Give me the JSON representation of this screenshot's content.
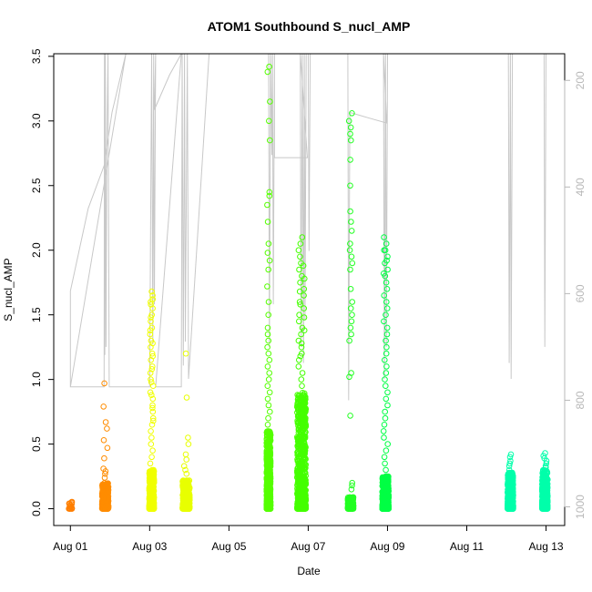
{
  "chart_data": {
    "type": "scatter",
    "title": "ATOM1 Southbound S_nucl_AMP",
    "xlabel": "Date",
    "ylabel": "S_nucl_AMP",
    "x_ticks": [
      "Aug 01",
      "Aug 03",
      "Aug 05",
      "Aug 07",
      "Aug 09",
      "Aug 11",
      "Aug 13"
    ],
    "x_tick_days": [
      1,
      3,
      5,
      7,
      9,
      11,
      13
    ],
    "xlim": [
      0.58,
      13.47
    ],
    "ylim": [
      -0.13,
      3.52
    ],
    "y_ticks": [
      0.0,
      0.5,
      1.0,
      1.5,
      2.0,
      2.5,
      3.0,
      3.5
    ],
    "y_tick_labels": [
      "0.0",
      "0.5",
      "1.0",
      "1.5",
      "2.0",
      "2.5",
      "3.0",
      "3.5"
    ],
    "right_axis": {
      "label": "",
      "ticks": [
        200,
        400,
        600,
        800,
        1000
      ],
      "lim_top": 150,
      "lim_bottom": 1035,
      "color": "#b8b8b8"
    },
    "grid": false,
    "marker": "open-circle",
    "clusters": [
      {
        "day": 1.0,
        "width": 0.08,
        "count": 25,
        "max": 0.06,
        "color": "#ff7f00",
        "outliers": []
      },
      {
        "day": 1.88,
        "width": 0.16,
        "count": 420,
        "max": 0.2,
        "color": "#ff8c00",
        "outliers": [
          0.97,
          0.79,
          0.67,
          0.62,
          0.53,
          0.47,
          0.39,
          0.31,
          0.29,
          0.27,
          0.24
        ]
      },
      {
        "day": 3.05,
        "width": 0.12,
        "count": 520,
        "max": 0.3,
        "color": "#f0ff00",
        "outliers": [
          1.68,
          1.65,
          1.62,
          1.55,
          1.45,
          1.35,
          1.25,
          1.15,
          1.05,
          0.95,
          0.85,
          0.75,
          0.65,
          0.55,
          0.45,
          1.6,
          1.5,
          1.4,
          1.3,
          1.2,
          1.1,
          1.0,
          0.9,
          0.8,
          0.7,
          0.6,
          0.5,
          0.4,
          0.35,
          1.58,
          1.48,
          1.38,
          1.28,
          1.18,
          1.08,
          0.98,
          0.88,
          0.78,
          0.68
        ]
      },
      {
        "day": 3.92,
        "width": 0.18,
        "count": 420,
        "max": 0.22,
        "color": "#e8ff00",
        "outliers": [
          1.2,
          0.86,
          0.55,
          0.5,
          0.42,
          0.38,
          0.33,
          0.3,
          0.27
        ]
      },
      {
        "day": 6.0,
        "width": 0.1,
        "count": 600,
        "max": 0.6,
        "color": "#55ff00",
        "outliers": [
          3.42,
          3.38,
          3.15,
          3.0,
          2.85,
          2.45,
          2.42,
          2.35,
          2.22,
          2.05,
          1.98,
          1.92,
          1.85,
          1.72,
          1.6,
          1.5,
          1.4,
          1.35,
          1.3,
          1.25,
          1.2,
          1.15,
          1.1,
          1.05,
          1.0,
          0.95,
          0.9,
          0.85,
          0.8,
          0.75,
          0.7,
          0.65
        ]
      },
      {
        "day": 6.83,
        "width": 0.22,
        "count": 800,
        "max": 0.9,
        "color": "#44ff00",
        "outliers": [
          2.1,
          2.05,
          2.0,
          1.95,
          1.9,
          1.85,
          1.8,
          1.75,
          1.7,
          1.65,
          1.6,
          1.55,
          1.5,
          1.45,
          1.4,
          1.35,
          1.3,
          1.25,
          1.2,
          1.15,
          1.1,
          1.05,
          1.0,
          0.95,
          1.88,
          1.78,
          1.68,
          1.58,
          1.48,
          1.38,
          1.28,
          1.18
        ]
      },
      {
        "day": 8.07,
        "width": 0.14,
        "count": 260,
        "max": 0.09,
        "color": "#22ff22",
        "outliers": [
          3.06,
          3.0,
          2.95,
          2.9,
          2.85,
          2.7,
          2.5,
          2.3,
          2.22,
          2.15,
          2.05,
          2.0,
          1.95,
          1.9,
          1.85,
          1.7,
          1.6,
          1.55,
          1.5,
          1.45,
          1.4,
          1.35,
          1.3,
          1.05,
          1.02,
          0.72,
          0.2,
          0.18,
          0.15
        ]
      },
      {
        "day": 8.95,
        "width": 0.16,
        "count": 620,
        "max": 0.25,
        "color": "#00ff44",
        "outliers": [
          2.1,
          2.05,
          2.0,
          1.95,
          1.9,
          1.85,
          1.8,
          1.75,
          1.7,
          1.65,
          1.6,
          1.55,
          1.5,
          1.45,
          1.4,
          1.35,
          1.3,
          1.25,
          1.2,
          1.15,
          1.1,
          1.05,
          1.0,
          0.95,
          0.9,
          0.85,
          0.8,
          0.75,
          0.7,
          0.65,
          0.6,
          0.55,
          0.5,
          0.45,
          0.4,
          0.35,
          0.3,
          2.0,
          1.92,
          1.82
        ]
      },
      {
        "day": 12.1,
        "width": 0.14,
        "count": 420,
        "max": 0.28,
        "color": "#00ffaa",
        "outliers": [
          0.42,
          0.4,
          0.37,
          0.35,
          0.33,
          0.3
        ]
      },
      {
        "day": 12.97,
        "width": 0.14,
        "count": 420,
        "max": 0.3,
        "color": "#00ffaa",
        "outliers": [
          0.43,
          0.41,
          0.39,
          0.37,
          0.35,
          0.33,
          0.32
        ]
      }
    ],
    "depth_series": {
      "name": "",
      "color": "#c8c8c8",
      "points": [
        [
          1.0,
          775
        ],
        [
          1.0,
          595
        ],
        [
          1.45,
          440
        ],
        [
          1.85,
          360
        ],
        [
          2.05,
          260
        ],
        [
          2.4,
          150
        ],
        [
          1.0,
          775
        ],
        [
          1.85,
          775
        ],
        [
          1.86,
          150
        ],
        [
          1.87,
          715
        ],
        [
          1.88,
          150
        ],
        [
          1.9,
          700
        ],
        [
          1.92,
          320
        ],
        [
          1.95,
          150
        ],
        [
          1.98,
          775
        ],
        [
          3.0,
          775
        ],
        [
          3.05,
          150
        ],
        [
          3.08,
          695
        ],
        [
          3.1,
          150
        ],
        [
          3.12,
          620
        ],
        [
          3.15,
          150
        ],
        [
          3.12,
          255
        ],
        [
          3.5,
          190
        ],
        [
          3.8,
          150
        ],
        [
          3.15,
          775
        ],
        [
          3.8,
          775
        ],
        [
          3.82,
          150
        ],
        [
          3.85,
          735
        ],
        [
          3.88,
          150
        ],
        [
          3.9,
          690
        ],
        [
          3.95,
          150
        ],
        [
          3.98,
          760
        ],
        [
          4.5,
          150
        ],
        [
          5.5,
          150
        ],
        [
          6.0,
          150
        ],
        [
          6.02,
          700
        ],
        [
          6.05,
          150
        ],
        [
          6.08,
          340
        ],
        [
          6.1,
          150
        ],
        [
          6.12,
          620
        ],
        [
          6.15,
          150
        ],
        [
          6.15,
          345
        ],
        [
          6.98,
          345
        ],
        [
          6.8,
          150
        ],
        [
          6.82,
          700
        ],
        [
          6.85,
          150
        ],
        [
          6.88,
          730
        ],
        [
          6.9,
          150
        ],
        [
          6.92,
          650
        ],
        [
          6.95,
          150
        ],
        [
          7.0,
          150
        ],
        [
          7.02,
          520
        ],
        [
          7.05,
          150
        ],
        [
          8.0,
          150
        ],
        [
          8.02,
          800
        ],
        [
          8.05,
          260
        ],
        [
          8.5,
          270
        ],
        [
          8.98,
          280
        ],
        [
          8.9,
          150
        ],
        [
          8.92,
          760
        ],
        [
          8.95,
          150
        ],
        [
          8.97,
          700
        ],
        [
          9.0,
          150
        ],
        [
          12.05,
          150
        ],
        [
          12.07,
          730
        ],
        [
          12.1,
          150
        ],
        [
          12.12,
          760
        ],
        [
          12.15,
          150
        ],
        [
          12.95,
          150
        ],
        [
          12.97,
          700
        ],
        [
          13.0,
          150
        ]
      ]
    }
  }
}
